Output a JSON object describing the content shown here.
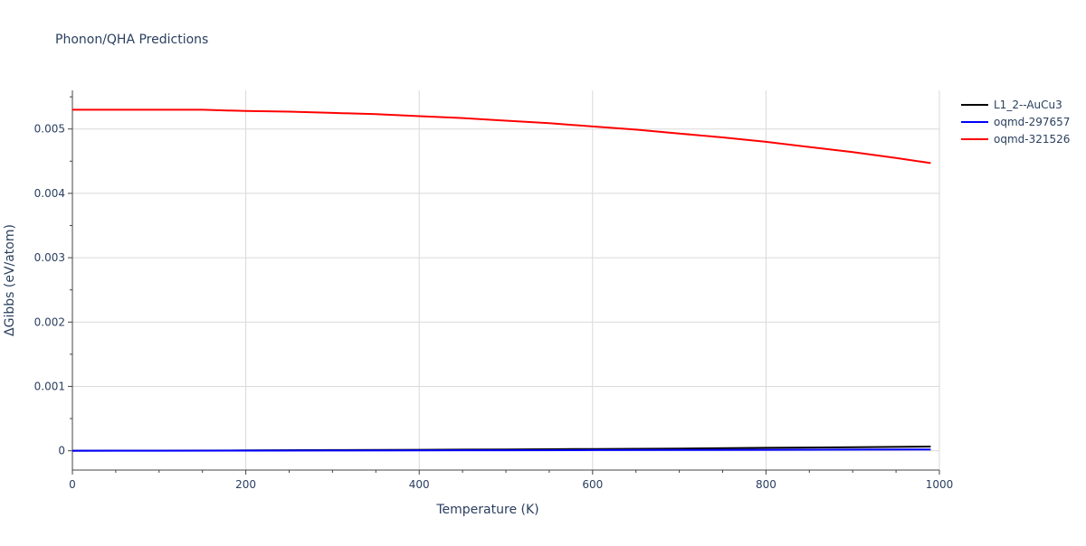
{
  "chart_data": {
    "type": "line",
    "title": "Phonon/QHA Predictions",
    "xlabel": "Temperature (K)",
    "ylabel": "ΔGibbs (eV/atom)",
    "xlim": [
      0,
      1000
    ],
    "ylim": [
      -0.0003,
      0.0056
    ],
    "x_ticks": [
      0,
      200,
      400,
      600,
      800,
      1000
    ],
    "x_tick_labels": [
      "0",
      "200",
      "400",
      "600",
      "800",
      "1000"
    ],
    "y_ticks": [
      0,
      0.001,
      0.002,
      0.003,
      0.004,
      0.005
    ],
    "y_tick_labels": [
      "0",
      "0.001",
      "0.002",
      "0.003",
      "0.004",
      "0.005"
    ],
    "grid": true,
    "legend_position": "top-right",
    "series": [
      {
        "name": "L1_2--AuCu3",
        "color": "#000000",
        "x": [
          0,
          100,
          200,
          300,
          400,
          500,
          600,
          700,
          800,
          900,
          990
        ],
        "y": [
          0,
          2e-06,
          5e-06,
          1e-05,
          1.5e-05,
          2e-05,
          2.8e-05,
          3.5e-05,
          4.5e-05,
          5.5e-05,
          6.5e-05
        ]
      },
      {
        "name": "oqmd-297657",
        "color": "#0000ff",
        "x": [
          0,
          100,
          200,
          300,
          400,
          500,
          600,
          700,
          800,
          900,
          990
        ],
        "y": [
          0,
          1e-06,
          2e-06,
          4e-06,
          6e-06,
          8e-06,
          1e-05,
          1.2e-05,
          1.5e-05,
          1.8e-05,
          2e-05
        ]
      },
      {
        "name": "oqmd-321526",
        "color": "#ff0000",
        "x": [
          0,
          50,
          100,
          150,
          200,
          250,
          300,
          350,
          400,
          450,
          500,
          550,
          600,
          650,
          700,
          750,
          800,
          850,
          900,
          950,
          990
        ],
        "y": [
          0.0053,
          0.0053,
          0.0053,
          0.0053,
          0.00528,
          0.00527,
          0.00525,
          0.00523,
          0.0052,
          0.00517,
          0.00513,
          0.00509,
          0.00504,
          0.00499,
          0.00493,
          0.00487,
          0.0048,
          0.00472,
          0.00464,
          0.00455,
          0.00447
        ]
      }
    ]
  }
}
